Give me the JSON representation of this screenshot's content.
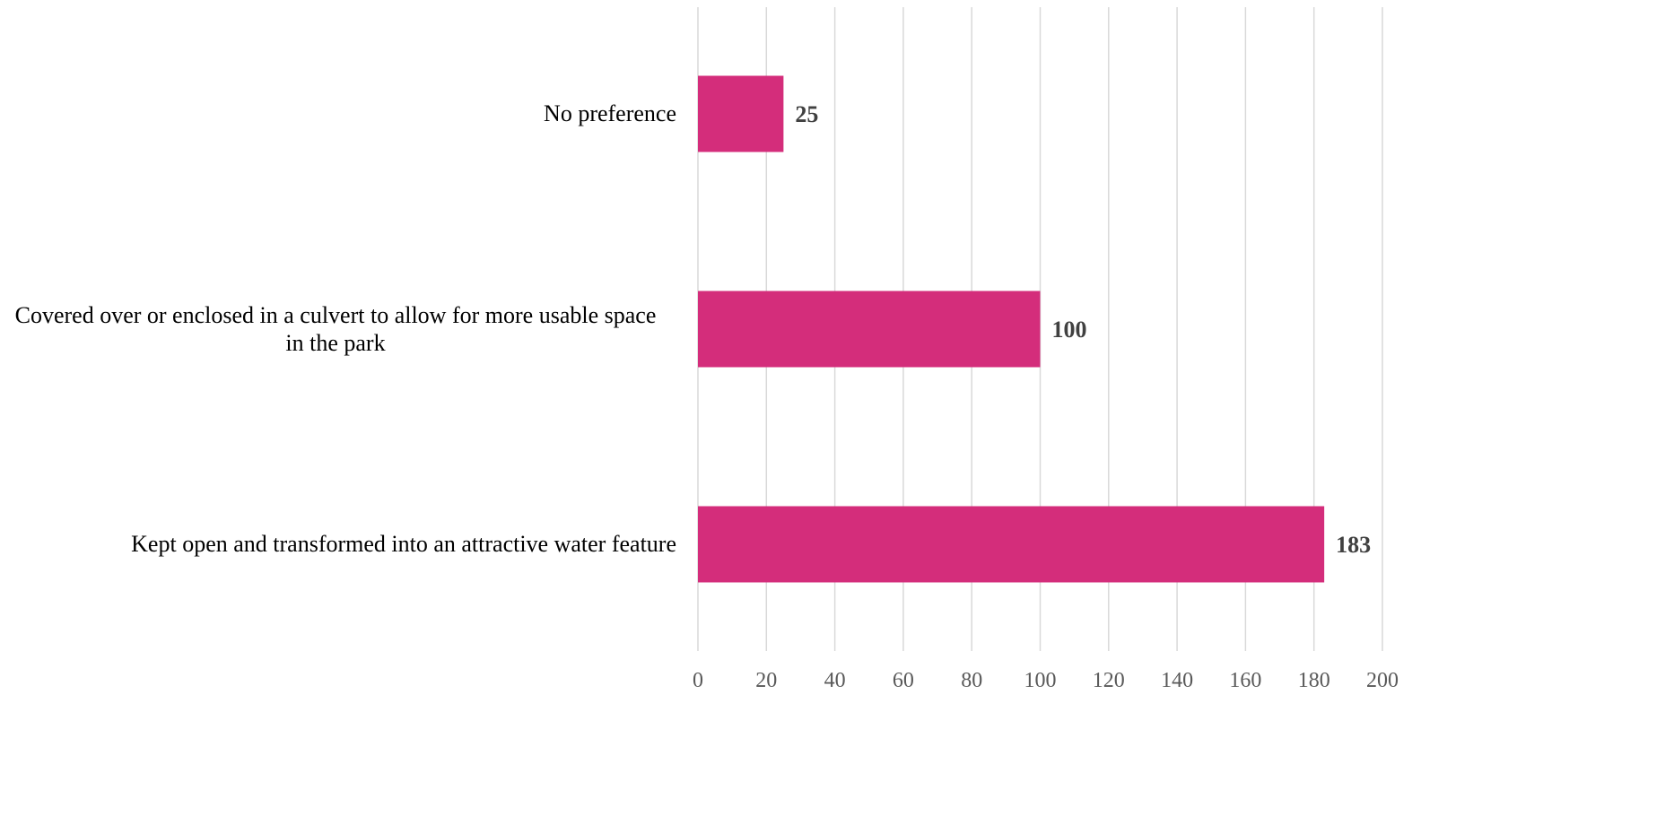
{
  "chart_data": {
    "type": "bar",
    "orientation": "horizontal",
    "title": "",
    "xlabel": "",
    "ylabel": "",
    "categories": [
      "No preference",
      "Covered over or enclosed in a culvert to allow for more usable space in the park",
      "Kept open and transformed into an attractive water feature"
    ],
    "category_lines": [
      [
        "No preference"
      ],
      [
        "Covered over or enclosed in a culvert to allow for more usable space",
        "in the park"
      ],
      [
        "Kept open and transformed into an attractive water feature"
      ]
    ],
    "values": [
      25,
      100,
      183
    ],
    "data_labels": [
      "25",
      "100",
      "183"
    ],
    "xlim": [
      0,
      200
    ],
    "x_ticks": [
      "0",
      "20",
      "40",
      "60",
      "80",
      "100",
      "120",
      "140",
      "160",
      "180",
      "200"
    ],
    "grid": "vertical",
    "legend": "none",
    "colors": {
      "bar": "#d42d7b",
      "grid": "#d9d9d9",
      "tick_label": "#595959",
      "data_label": "#404040"
    }
  }
}
